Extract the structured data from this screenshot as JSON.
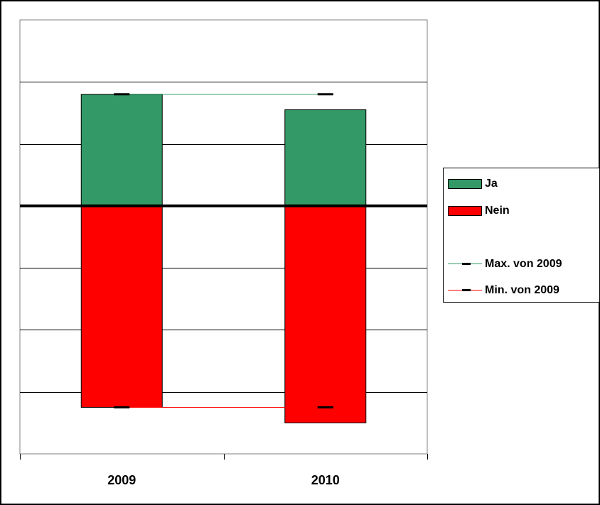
{
  "chart_data": {
    "type": "bar",
    "stacked": true,
    "categories": [
      "2009",
      "2010"
    ],
    "series": [
      {
        "name": "Ja",
        "values": [
          1.8,
          1.55
        ],
        "color": "#339966"
      },
      {
        "name": "Nein",
        "values": [
          -3.25,
          -3.5
        ],
        "color": "#ff0000"
      },
      {
        "name": "Max. von 2009",
        "type": "line",
        "values": [
          1.8,
          1.8
        ],
        "color": "#339966"
      },
      {
        "name": "Min. von 2009",
        "type": "line",
        "values": [
          -3.25,
          -3.25
        ],
        "color": "#ff0000"
      }
    ],
    "ylim": [
      -4,
      3
    ],
    "grid": true,
    "legend_position": "right",
    "colors": {
      "plot_bg": "#ffffff",
      "border": "#000000",
      "axis": "#808080"
    }
  }
}
